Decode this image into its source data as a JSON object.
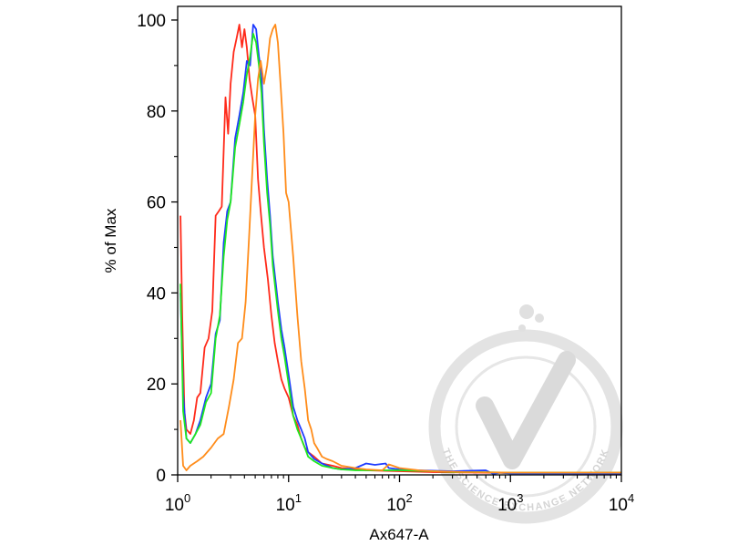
{
  "chart_data": {
    "type": "line",
    "xlabel": "Ax647-A",
    "ylabel": "% of Max",
    "xscale": "log",
    "xlim": [
      1,
      10000
    ],
    "ylim": [
      0,
      103
    ],
    "yticks": [
      0,
      20,
      40,
      60,
      80,
      100
    ],
    "ytick_labels": [
      "0",
      "20",
      "40",
      "60",
      "80",
      "100"
    ],
    "xticks": [
      1,
      10,
      100,
      1000,
      10000
    ],
    "xtick_labels": [
      {
        "base": "10",
        "exp": "0"
      },
      {
        "base": "10",
        "exp": "1"
      },
      {
        "base": "10",
        "exp": "2"
      },
      {
        "base": "10",
        "exp": "3"
      },
      {
        "base": "10",
        "exp": "4"
      }
    ],
    "grid": false,
    "legend": "none",
    "series": [
      {
        "color": "#ff2a1a",
        "x": [
          1.06,
          1.1,
          1.15,
          1.2,
          1.3,
          1.4,
          1.5,
          1.6,
          1.75,
          1.9,
          2.05,
          2.2,
          2.35,
          2.5,
          2.7,
          2.85,
          3.0,
          3.2,
          3.4,
          3.6,
          3.8,
          4.0,
          4.2,
          4.45,
          4.7,
          5.0,
          5.3,
          5.6,
          6.0,
          6.5,
          7.0,
          7.5,
          8.0,
          8.6,
          9.2,
          10.0,
          11.0,
          12.0,
          13.0,
          14.0,
          15.0,
          17.0,
          20.0,
          25.0,
          30.0,
          50.0,
          100.0,
          200.0,
          500.0,
          1000.0,
          10000.0
        ],
        "y": [
          57,
          35,
          14,
          10,
          9,
          12,
          17,
          18,
          28,
          30,
          36,
          57,
          58,
          59,
          83,
          75,
          86,
          93,
          96,
          99,
          94,
          98,
          94,
          87,
          83,
          79,
          65,
          58,
          50,
          43,
          35,
          29,
          25,
          21,
          19,
          17,
          13,
          11,
          8,
          6,
          5,
          4,
          2.5,
          2,
          1.5,
          1,
          0.8,
          0.6,
          0.5,
          0.4,
          0.3
        ]
      },
      {
        "color": "#1f3cff",
        "x": [
          1.06,
          1.12,
          1.2,
          1.3,
          1.45,
          1.6,
          1.8,
          2.0,
          2.2,
          2.4,
          2.6,
          2.8,
          3.0,
          3.3,
          3.6,
          3.9,
          4.2,
          4.5,
          4.8,
          5.1,
          5.4,
          5.7,
          6.0,
          6.4,
          6.8,
          7.2,
          7.6,
          8.0,
          8.6,
          9.2,
          10.0,
          11.0,
          12.0,
          13.0,
          14.0,
          15.0,
          17.0,
          20.0,
          25.0,
          30.0,
          40.0,
          50.0,
          60.0,
          75.0,
          80.0,
          100.0,
          150.0,
          300.0,
          600.0,
          700.0,
          800.0,
          1000.0,
          10000.0
        ],
        "y": [
          40,
          18,
          8,
          7,
          9,
          12,
          17,
          20,
          31,
          34,
          51,
          58,
          60,
          74,
          79,
          84,
          91,
          90,
          99,
          98,
          92,
          88,
          76,
          65,
          57,
          48,
          43,
          38,
          32,
          28,
          22,
          15,
          12,
          10,
          8,
          5,
          3.5,
          2.5,
          1.5,
          1.2,
          1.5,
          2.5,
          2.2,
          2.5,
          1.5,
          1.2,
          1.0,
          0.8,
          1.0,
          0.2,
          0.5,
          0.3,
          0.3
        ]
      },
      {
        "color": "#1fe81f",
        "x": [
          1.06,
          1.12,
          1.2,
          1.3,
          1.45,
          1.6,
          1.8,
          2.0,
          2.2,
          2.4,
          2.6,
          2.8,
          3.0,
          3.3,
          3.6,
          3.9,
          4.2,
          4.5,
          4.8,
          5.1,
          5.4,
          5.7,
          6.0,
          6.4,
          6.8,
          7.2,
          7.6,
          8.0,
          8.6,
          9.2,
          10.0,
          11.0,
          12.0,
          13.0,
          14.0,
          15.0,
          17.0,
          20.0,
          25.0,
          30.0,
          40.0,
          60.0,
          100.0,
          200.0,
          300.0,
          500.0,
          1000.0,
          10000.0
        ],
        "y": [
          42,
          14,
          8,
          7,
          9,
          11,
          16,
          18,
          30,
          35,
          48,
          56,
          60,
          72,
          77,
          82,
          88,
          92,
          97,
          95,
          90,
          84,
          73,
          62,
          55,
          46,
          41,
          36,
          30,
          26,
          20,
          13,
          10,
          8,
          6,
          4,
          3,
          2,
          1.5,
          1.2,
          1.0,
          1.0,
          1.0,
          0.8,
          0.6,
          0.6,
          0.5,
          0.5
        ]
      },
      {
        "color": "#ff8c1a",
        "x": [
          1.06,
          1.12,
          1.2,
          1.3,
          1.5,
          1.7,
          2.0,
          2.3,
          2.6,
          2.9,
          3.2,
          3.5,
          3.8,
          4.1,
          4.4,
          4.7,
          5.0,
          5.3,
          5.6,
          6.0,
          6.4,
          6.8,
          7.2,
          7.6,
          8.0,
          8.5,
          9.0,
          9.5,
          10.0,
          11.0,
          12.0,
          13.0,
          14.0,
          15.0,
          16.0,
          17.0,
          18.0,
          20.0,
          22.0,
          25.0,
          30.0,
          40.0,
          50.0,
          70.0,
          80.0,
          100.0,
          150.0,
          200.0,
          400.0,
          1000.0,
          10000.0
        ],
        "y": [
          12,
          2,
          1,
          2,
          3,
          4,
          6,
          8,
          9,
          15,
          21,
          29,
          30,
          38,
          52,
          66,
          79,
          87,
          91,
          86,
          90,
          96,
          98,
          99,
          95,
          85,
          75,
          62,
          60,
          48,
          35,
          25,
          19,
          12,
          10,
          7,
          6,
          4,
          3.5,
          3,
          2,
          1.5,
          1.2,
          1.0,
          2.3,
          1.5,
          1.0,
          0.8,
          0.6,
          0.5,
          0.5
        ]
      }
    ]
  },
  "watermark": {
    "text": "THE SCIENCE EXCHANGE NETWORK",
    "color": "#dcdcdc"
  }
}
